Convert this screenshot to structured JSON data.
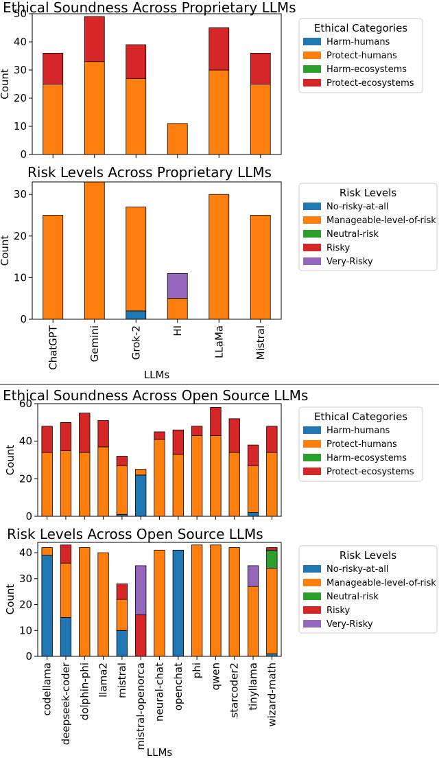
{
  "chart_data": [
    {
      "type": "bar",
      "stacked": true,
      "title": "Ethical Soundness Across Proprietary LLMs",
      "ylabel": "Count",
      "xlabel": "",
      "ylim": [
        0,
        50
      ],
      "yticks": [
        0,
        10,
        20,
        30,
        40,
        50
      ],
      "categories": [
        "ChatGPT",
        "Gemini",
        "Grok-2",
        "HI",
        "LLaMa",
        "Mistral"
      ],
      "legend_title": "Ethical Categories",
      "legend_position": "right",
      "series": [
        {
          "name": "Harm-humans",
          "color": "#1f77b4",
          "values": [
            0,
            0,
            0,
            0,
            0,
            0
          ]
        },
        {
          "name": "Protect-humans",
          "color": "#ff7f0e",
          "values": [
            25,
            33,
            27,
            11,
            30,
            25
          ]
        },
        {
          "name": "Harm-ecosystems",
          "color": "#2ca02c",
          "values": [
            0,
            0,
            0,
            0,
            0,
            0
          ]
        },
        {
          "name": "Protect-ecosystems",
          "color": "#d62728",
          "values": [
            11,
            16,
            12,
            0,
            15,
            11
          ]
        }
      ]
    },
    {
      "type": "bar",
      "stacked": true,
      "title": "Risk Levels Across Proprietary LLMs",
      "ylabel": "Count",
      "xlabel": "LLMs",
      "ylim": [
        0,
        33
      ],
      "yticks": [
        0,
        10,
        20,
        30
      ],
      "categories": [
        "ChatGPT",
        "Gemini",
        "Grok-2",
        "HI",
        "LLaMa",
        "Mistral"
      ],
      "legend_title": "Risk Levels",
      "legend_position": "right",
      "series": [
        {
          "name": "No-risky-at-all",
          "color": "#1f77b4",
          "values": [
            0,
            0,
            2,
            0,
            0,
            0
          ]
        },
        {
          "name": "Manageable-level-of-risk",
          "color": "#ff7f0e",
          "values": [
            25,
            33,
            25,
            5,
            30,
            25
          ]
        },
        {
          "name": "Neutral-risk",
          "color": "#2ca02c",
          "values": [
            0,
            0,
            0,
            0,
            0,
            0
          ]
        },
        {
          "name": "Risky",
          "color": "#d62728",
          "values": [
            0,
            0,
            0,
            0,
            0,
            0
          ]
        },
        {
          "name": "Very-Risky",
          "color": "#9467bd",
          "values": [
            0,
            0,
            0,
            6,
            0,
            0
          ]
        }
      ]
    },
    {
      "type": "bar",
      "stacked": true,
      "title": "Ethical Soundness Across Open Source LLMs",
      "ylabel": "Count",
      "xlabel": "",
      "ylim": [
        0,
        60
      ],
      "yticks": [
        0,
        20,
        40,
        60
      ],
      "categories": [
        "codellama",
        "deepseek-coder",
        "dolphin-phi",
        "llama2",
        "mistral",
        "mistral-openorca",
        "neural-chat",
        "openchat",
        "phi",
        "qwen",
        "starcoder2",
        "tinyllama",
        "wizard-math"
      ],
      "legend_title": "Ethical Categories",
      "legend_position": "right",
      "series": [
        {
          "name": "Harm-humans",
          "color": "#1f77b4",
          "values": [
            0,
            0,
            0,
            0,
            1,
            22,
            0,
            0,
            0,
            0,
            0,
            2,
            0
          ]
        },
        {
          "name": "Protect-humans",
          "color": "#ff7f0e",
          "values": [
            34,
            35,
            34,
            37,
            26,
            3,
            41,
            33,
            43,
            43,
            34,
            25,
            34
          ]
        },
        {
          "name": "Harm-ecosystems",
          "color": "#2ca02c",
          "values": [
            0,
            0,
            0,
            0,
            0,
            0,
            0,
            0,
            0,
            0,
            0,
            0,
            0
          ]
        },
        {
          "name": "Protect-ecosystems",
          "color": "#d62728",
          "values": [
            14,
            15,
            21,
            14,
            5,
            0,
            4,
            13,
            5,
            15,
            18,
            11,
            14
          ]
        }
      ]
    },
    {
      "type": "bar",
      "stacked": true,
      "title": "Risk Levels Across Open Source LLMs",
      "ylabel": "Count",
      "xlabel": "LLMs",
      "ylim": [
        0,
        44
      ],
      "yticks": [
        0,
        10,
        20,
        30,
        40
      ],
      "categories": [
        "codellama",
        "deepseek-coder",
        "dolphin-phi",
        "llama2",
        "mistral",
        "mistral-openorca",
        "neural-chat",
        "openchat",
        "phi",
        "qwen",
        "starcoder2",
        "tinyllama",
        "wizard-math"
      ],
      "legend_title": "Risk Levels",
      "legend_position": "right",
      "series": [
        {
          "name": "No-risky-at-all",
          "color": "#1f77b4",
          "values": [
            39,
            15,
            0,
            0,
            10,
            0,
            0,
            41,
            0,
            0,
            0,
            0,
            1
          ]
        },
        {
          "name": "Manageable-level-of-risk",
          "color": "#ff7f0e",
          "values": [
            3,
            21,
            42,
            40,
            12,
            0,
            41,
            0,
            43,
            43,
            42,
            27,
            33
          ]
        },
        {
          "name": "Neutral-risk",
          "color": "#2ca02c",
          "values": [
            0,
            0,
            0,
            0,
            0,
            0,
            0,
            0,
            0,
            0,
            0,
            0,
            7
          ]
        },
        {
          "name": "Risky",
          "color": "#d62728",
          "values": [
            0,
            7,
            0,
            0,
            6,
            16,
            0,
            0,
            0,
            0,
            0,
            0,
            1
          ]
        },
        {
          "name": "Very-Risky",
          "color": "#9467bd",
          "values": [
            0,
            0,
            0,
            0,
            0,
            19,
            0,
            0,
            0,
            0,
            0,
            8,
            0
          ]
        }
      ]
    }
  ]
}
